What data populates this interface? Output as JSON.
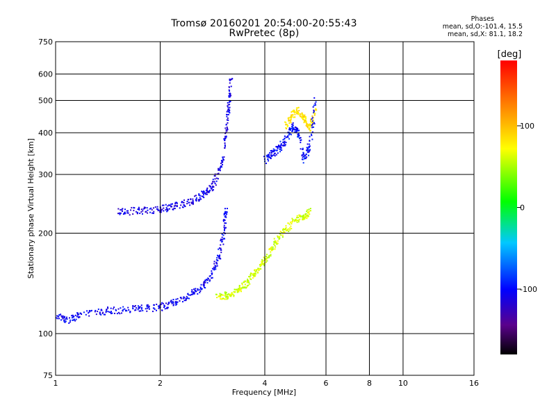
{
  "chart_data": {
    "type": "scatter",
    "title": "Tromsø 20160201 20:54:00-20:55:43",
    "subtitle": "RwPretec (8p)",
    "xlabel": "Frequency [MHz]",
    "ylabel": "Stationary phase Virtual Height [km]",
    "x_scale": "log",
    "y_scale": "log",
    "xlim": [
      1,
      16
    ],
    "ylim": [
      75,
      750
    ],
    "xticks": [
      1,
      2,
      4,
      6,
      8,
      10,
      16
    ],
    "yticks": [
      75,
      100,
      200,
      300,
      400,
      500,
      600,
      750
    ],
    "grid": true,
    "legend": {
      "title": "Phases",
      "lines": [
        "mean, sd,O:-101.4, 15.5",
        "mean, sd,X:  81.1, 18.2"
      ]
    },
    "colorbar": {
      "label": "[deg]",
      "range": [
        -180,
        180
      ],
      "ticks": [
        100,
        0,
        -100
      ]
    },
    "traces": [
      {
        "mode": "O",
        "phase": -105,
        "freq": [
          1.0,
          1.1,
          1.2,
          1.4,
          1.6,
          1.8,
          2.0,
          2.2,
          2.4,
          2.6,
          2.8,
          2.95,
          3.05,
          3.1
        ],
        "height": [
          112,
          110,
          115,
          117,
          118,
          119,
          120,
          124,
          129,
          136,
          148,
          170,
          200,
          235
        ]
      },
      {
        "mode": "O-F2",
        "phase": -110,
        "freq": [
          1.5,
          1.7,
          1.9,
          2.1,
          2.3,
          2.5,
          2.7,
          2.85,
          3.0,
          3.1,
          3.15,
          3.2
        ],
        "height": [
          232,
          233,
          235,
          238,
          244,
          252,
          263,
          280,
          320,
          400,
          480,
          590
        ]
      },
      {
        "mode": "X",
        "phase": 60,
        "freq": [
          2.9,
          3.1,
          3.3,
          3.5,
          3.7,
          3.9,
          4.1,
          4.3,
          4.6,
          4.9,
          5.2,
          5.4
        ],
        "height": [
          128,
          130,
          133,
          140,
          150,
          160,
          172,
          188,
          205,
          220,
          225,
          232
        ]
      },
      {
        "mode": "X-F2",
        "phase": 85,
        "freq": [
          4.6,
          4.8,
          5.0,
          5.2,
          5.4,
          5.6
        ],
        "height": [
          420,
          450,
          470,
          440,
          410,
          480
        ]
      },
      {
        "mode": "O-high",
        "phase": -100,
        "freq": [
          4.0,
          4.2,
          4.4,
          4.6,
          4.8,
          5.0,
          5.2,
          5.4,
          5.6
        ],
        "height": [
          330,
          345,
          360,
          380,
          420,
          400,
          330,
          370,
          500
        ]
      }
    ]
  }
}
